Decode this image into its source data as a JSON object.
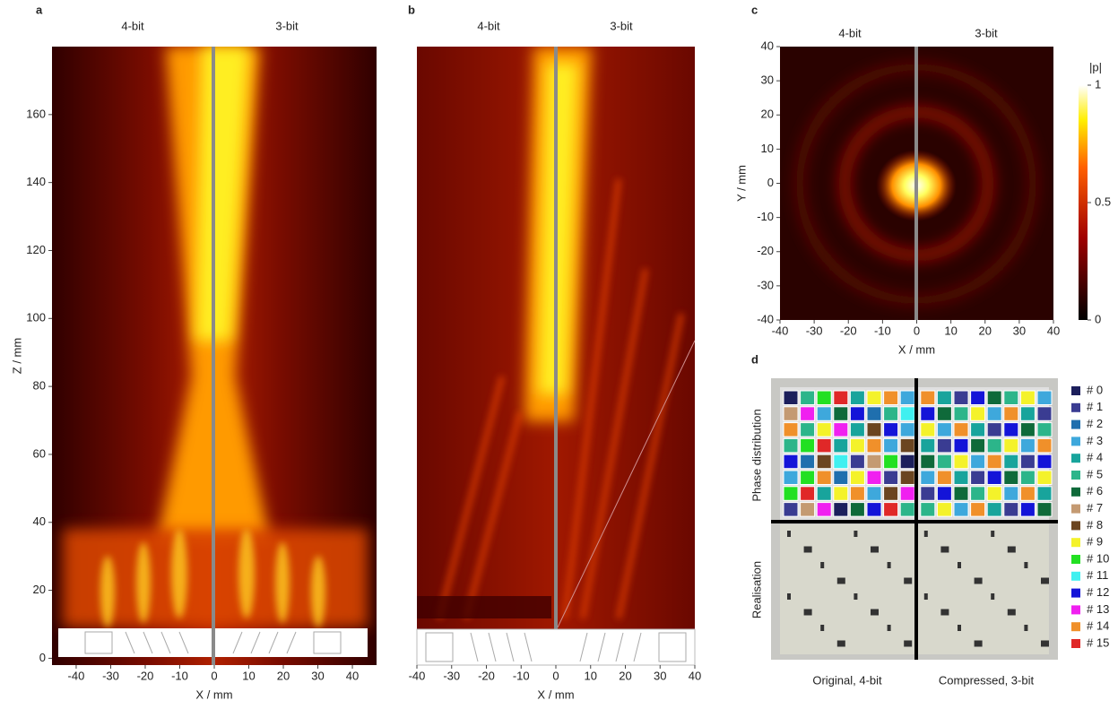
{
  "panels": [
    {
      "label": "a",
      "left_title": "4-bit",
      "right_title": "3-bit",
      "x_label": "X / mm",
      "y_label": "Z / mm",
      "xlim": [
        -47,
        47
      ],
      "xticks": [
        -40,
        -30,
        -20,
        -10,
        0,
        10,
        20,
        30,
        40
      ],
      "ylim": [
        -2,
        180
      ],
      "yticks": [
        0,
        20,
        40,
        60,
        80,
        100,
        120,
        140,
        160
      ]
    },
    {
      "label": "b",
      "left_title": "4-bit",
      "right_title": "3-bit",
      "x_label": "X / mm",
      "xlim": [
        -40,
        40
      ],
      "xticks": [
        -40,
        -30,
        -20,
        -10,
        0,
        10,
        20,
        30,
        40
      ]
    },
    {
      "label": "c",
      "left_title": "4-bit",
      "right_title": "3-bit",
      "x_label": "X / mm",
      "y_label": "Y / mm",
      "xlim": [
        -40,
        40
      ],
      "xticks": [
        -40,
        -30,
        -20,
        -10,
        0,
        10,
        20,
        30,
        40
      ],
      "ylim": [
        -40,
        40
      ],
      "yticks": [
        -40,
        -30,
        -20,
        -10,
        0,
        10,
        20,
        30,
        40
      ],
      "colorbar": {
        "label": "|p|",
        "lim": [
          0,
          1
        ],
        "ticks": [
          0,
          0.5,
          1
        ]
      }
    },
    {
      "label": "d",
      "row_labels": [
        "Phase distribution",
        "Realisation"
      ],
      "captions": [
        "Original, 4-bit",
        "Compressed, 3-bit"
      ],
      "legend": [
        {
          "name": "# 0",
          "color": "#1c1f5c"
        },
        {
          "name": "# 1",
          "color": "#3a3c92"
        },
        {
          "name": "# 2",
          "color": "#1f6fae"
        },
        {
          "name": "# 3",
          "color": "#3ea8dc"
        },
        {
          "name": "# 4",
          "color": "#18a49c"
        },
        {
          "name": "# 5",
          "color": "#2cb58a"
        },
        {
          "name": "# 6",
          "color": "#0f6a3a"
        },
        {
          "name": "# 7",
          "color": "#c49a72"
        },
        {
          "name": "# 8",
          "color": "#6b4520"
        },
        {
          "name": "# 9",
          "color": "#f4f22a"
        },
        {
          "name": "# 10",
          "color": "#22e022"
        },
        {
          "name": "# 11",
          "color": "#40f0f0"
        },
        {
          "name": "# 12",
          "color": "#1414d8"
        },
        {
          "name": "# 13",
          "color": "#f020f0"
        },
        {
          "name": "# 14",
          "color": "#f0902a"
        },
        {
          "name": "# 15",
          "color": "#e02828"
        }
      ]
    }
  ]
}
